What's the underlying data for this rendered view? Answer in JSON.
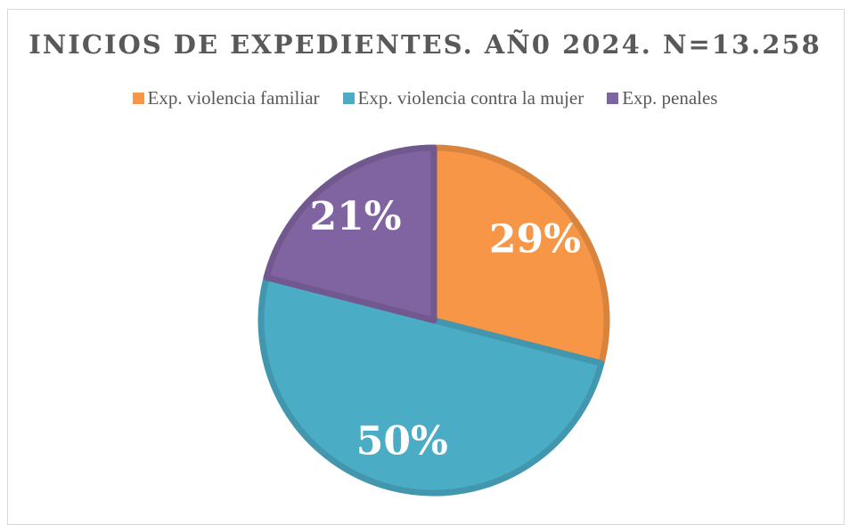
{
  "chart_data": {
    "type": "pie",
    "title": "INICIOS DE EXPEDIENTES. AÑ0 2024. N=13.258",
    "categories": [
      "Exp. violencia familiar",
      "Exp. violencia contra la mujer",
      "Exp. penales"
    ],
    "values": [
      29,
      50,
      21
    ],
    "value_labels": [
      "29%",
      "50%",
      "21%"
    ],
    "colors": [
      "#f79646",
      "#4bacc6",
      "#8064a2"
    ],
    "legend": "top"
  }
}
